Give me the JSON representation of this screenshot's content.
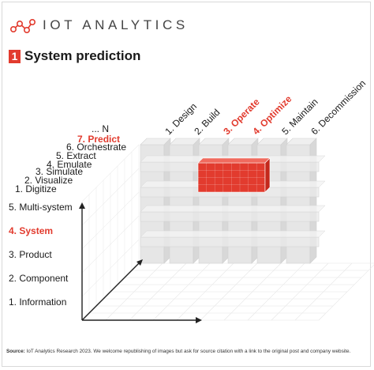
{
  "header": {
    "brand": "IOT ANALYTICS",
    "title_number": "1",
    "title": "System prediction"
  },
  "lifecycle_axis": {
    "labels": [
      {
        "text": "1. Design",
        "highlight": false
      },
      {
        "text": "2. Build",
        "highlight": false
      },
      {
        "text": "3. Operate",
        "highlight": true
      },
      {
        "text": "4. Optimize",
        "highlight": true
      },
      {
        "text": "5. Maintain",
        "highlight": false
      },
      {
        "text": "6. Decommission",
        "highlight": false
      }
    ]
  },
  "capability_axis": {
    "labels": [
      {
        "text": "... N",
        "highlight": false
      },
      {
        "text": "7. Predict",
        "highlight": true
      },
      {
        "text": "6. Orchestrate",
        "highlight": false
      },
      {
        "text": "5. Extract",
        "highlight": false
      },
      {
        "text": "4. Emulate",
        "highlight": false
      },
      {
        "text": "3. Simulate",
        "highlight": false
      },
      {
        "text": "2. Visualize",
        "highlight": false
      },
      {
        "text": "1. Digitize",
        "highlight": false
      }
    ]
  },
  "hierarchy_axis": {
    "labels": [
      {
        "text": "5. Multi-system",
        "highlight": false
      },
      {
        "text": "4. System",
        "highlight": true
      },
      {
        "text": "3. Product",
        "highlight": false
      },
      {
        "text": "2. Component",
        "highlight": false
      },
      {
        "text": "1. Information",
        "highlight": false
      }
    ]
  },
  "highlight_block_label": "1",
  "colors": {
    "accent": "#e23b2e",
    "grid": "#d0d0d0",
    "pillar": "#e4e4e4"
  },
  "footer": {
    "source_label": "Source:",
    "source_text": "IoT Analytics Research 2023. We welcome republishing of images but ask for source citation with a link to the original post and company website."
  }
}
